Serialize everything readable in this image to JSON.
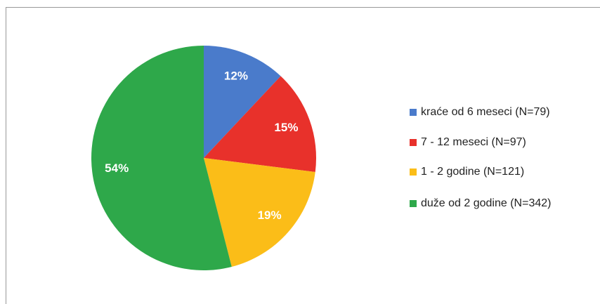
{
  "chart_data": {
    "type": "pie",
    "categories": [
      "kraće od 6 meseci (N=79)",
      "7 - 12 meseci (N=97)",
      "1 - 2 godine (N=121)",
      "duže od 2 godine (N=342)"
    ],
    "values": [
      12,
      15,
      19,
      54
    ],
    "value_labels": [
      "12%",
      "15%",
      "19%",
      "54%"
    ],
    "colors": [
      "#4a7bcb",
      "#e8312b",
      "#fbbd18",
      "#2ea84a"
    ],
    "legend": "right"
  }
}
